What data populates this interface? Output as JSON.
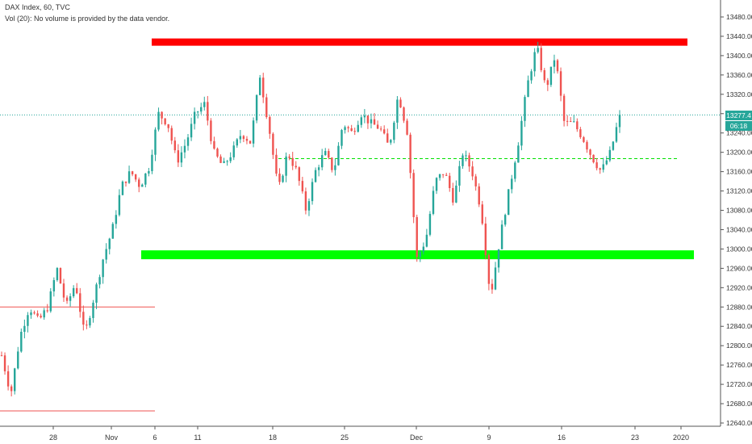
{
  "legend": {
    "title": "DAX Index, 60, TVC",
    "volume_note": "Vol (20): No volume is provided by the data vendor."
  },
  "last_price": {
    "price_label": "13277.4",
    "countdown_label": "06:18",
    "value": 13277.4
  },
  "colors": {
    "up": "#26a69a",
    "down": "#ef5350",
    "resistance": "#ff0000",
    "support": "#00ff00",
    "last_price_line": "#26a69a",
    "dashed_level": "#00e000"
  },
  "chart_data": {
    "type": "candlestick",
    "title": "DAX Index, 60, TVC",
    "ylim": [
      12620,
      13520
    ],
    "y_ticks": [
      12640,
      12680,
      12720,
      12760,
      12800,
      12840,
      12880,
      12920,
      12960,
      13000,
      13040,
      13080,
      13120,
      13160,
      13200,
      13240,
      13280,
      13320,
      13360,
      13400,
      13440,
      13480
    ],
    "x_ticks": [
      "28",
      "Nov",
      "6",
      "11",
      "18",
      "25",
      "Dec",
      "9",
      "16",
      "23",
      "2020"
    ],
    "grid": false,
    "series_path": [
      12780,
      12700,
      12820,
      12880,
      12850,
      12880,
      12960,
      12880,
      12930,
      12820,
      12900,
      12980,
      13040,
      13130,
      13160,
      13130,
      13170,
      13280,
      13260,
      13180,
      13220,
      13280,
      13300,
      13200,
      13170,
      13200,
      13240,
      13220,
      13360,
      13250,
      13120,
      13200,
      13160,
      13080,
      13160,
      13200,
      13160,
      13260,
      13240,
      13280,
      13260,
      13250,
      13210,
      13320,
      13240,
      12980,
      13020,
      13140,
      13160,
      13100,
      13200,
      13160,
      13080,
      12900,
      13020,
      13120,
      13220,
      13340,
      13420,
      13330,
      13400,
      13260,
      13260,
      13230,
      13190,
      13160,
      13200,
      13277
    ],
    "horizontal_levels": [
      {
        "price": 13428,
        "style": "thick",
        "color": "#ff0000",
        "x_start": "Nov 5",
        "x_end": "2020"
      },
      {
        "price": 12988,
        "style": "thick",
        "color": "#00ff00",
        "x_start": "Nov 5",
        "x_end": "2020"
      },
      {
        "price": 13187,
        "style": "dashed",
        "color": "#00e000",
        "x_start": "Nov 18",
        "x_end": "Dec 24"
      },
      {
        "price": 12880,
        "style": "thin",
        "color": "#ef5350",
        "x_start": "Oct 21",
        "x_end": "Nov 6"
      },
      {
        "price": 12665,
        "style": "thin",
        "color": "#ef5350",
        "x_start": "Oct 21",
        "x_end": "Nov 6"
      }
    ]
  }
}
